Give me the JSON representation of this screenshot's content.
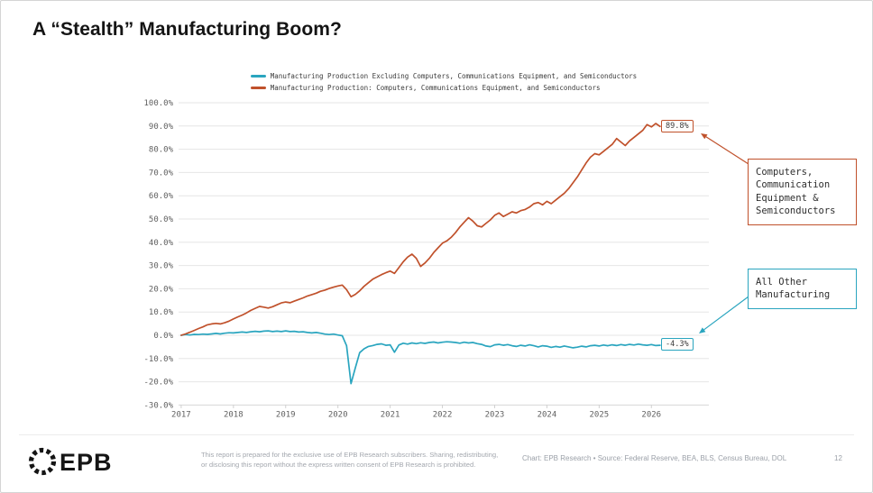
{
  "slide": {
    "title": "A “Stealth” Manufacturing Boom?",
    "page_number": "12"
  },
  "chart_data": {
    "type": "line",
    "title": "A “Stealth” Manufacturing Boom?",
    "legend_position": "top-center",
    "grid": "horizontal",
    "x_axis": {
      "tick_labels": [
        "2017",
        "2018",
        "2019",
        "2020",
        "2021",
        "2022",
        "2023",
        "2024",
        "2025",
        "2026"
      ],
      "tick_values": [
        2017,
        2018,
        2019,
        2020,
        2021,
        2022,
        2023,
        2024,
        2025,
        2026
      ],
      "range": [
        2016.95,
        2027.1
      ]
    },
    "y_axis": {
      "unit": "%",
      "tick_labels": [
        "100.0%",
        "90.0%",
        "80.0%",
        "70.0%",
        "60.0%",
        "50.0%",
        "40.0%",
        "30.0%",
        "20.0%",
        "10.0%",
        "0.0%",
        "-10.0%",
        "-20.0%",
        "-30.0%"
      ],
      "tick_values": [
        100,
        90,
        80,
        70,
        60,
        50,
        40,
        30,
        20,
        10,
        0,
        -10,
        -20,
        -30
      ],
      "range": [
        -30,
        100
      ]
    },
    "series": [
      {
        "name": "Manufacturing Production Excluding Computers, Communications Equipment, and Semiconductors",
        "color": "#2aa5bf",
        "end_label": "-4.3%",
        "x_start": 2017.0,
        "x_step_years": 0.0833333,
        "values": [
          0.0,
          0.3,
          0.1,
          0.4,
          0.3,
          0.5,
          0.4,
          0.6,
          0.8,
          0.6,
          0.9,
          1.1,
          1.0,
          1.2,
          1.4,
          1.2,
          1.5,
          1.7,
          1.5,
          1.8,
          1.9,
          1.6,
          1.8,
          1.6,
          1.9,
          1.6,
          1.7,
          1.4,
          1.5,
          1.2,
          1.0,
          1.2,
          0.9,
          0.5,
          0.3,
          0.5,
          0.1,
          -0.2,
          -4.5,
          -20.8,
          -14.0,
          -7.5,
          -5.8,
          -4.8,
          -4.4,
          -3.9,
          -3.7,
          -4.3,
          -4.1,
          -7.3,
          -4.2,
          -3.4,
          -3.8,
          -3.3,
          -3.6,
          -3.2,
          -3.5,
          -3.1,
          -2.9,
          -3.3,
          -3.0,
          -2.8,
          -2.9,
          -3.1,
          -3.4,
          -3.0,
          -3.3,
          -3.1,
          -3.6,
          -3.9,
          -4.6,
          -4.9,
          -4.1,
          -3.9,
          -4.3,
          -4.0,
          -4.5,
          -4.8,
          -4.3,
          -4.6,
          -4.1,
          -4.5,
          -5.0,
          -4.5,
          -4.7,
          -5.2,
          -4.8,
          -5.1,
          -4.6,
          -5.0,
          -5.4,
          -5.1,
          -4.7,
          -5.0,
          -4.5,
          -4.3,
          -4.6,
          -4.2,
          -4.5,
          -4.1,
          -4.4,
          -4.0,
          -4.3,
          -3.9,
          -4.2,
          -3.8,
          -4.1,
          -4.3,
          -4.0,
          -4.4,
          -4.3
        ]
      },
      {
        "name": "Manufacturing Production: Computers, Communications Equipment, and Semiconductors",
        "color": "#c0512b",
        "end_label": "89.8%",
        "x_start": 2017.0,
        "x_step_years": 0.0833333,
        "values": [
          0.0,
          0.6,
          1.3,
          2.1,
          2.9,
          3.6,
          4.5,
          4.9,
          5.1,
          4.9,
          5.4,
          6.1,
          7.0,
          7.9,
          8.7,
          9.6,
          10.7,
          11.6,
          12.4,
          12.1,
          11.7,
          12.3,
          13.1,
          13.9,
          14.3,
          14.0,
          14.7,
          15.4,
          16.1,
          16.9,
          17.5,
          18.1,
          18.9,
          19.4,
          20.1,
          20.7,
          21.2,
          21.6,
          19.6,
          16.6,
          17.6,
          19.1,
          21.1,
          22.6,
          24.1,
          25.1,
          26.1,
          26.9,
          27.6,
          26.6,
          29.1,
          31.6,
          33.6,
          34.9,
          33.1,
          29.6,
          31.1,
          33.1,
          35.6,
          37.6,
          39.6,
          40.6,
          42.1,
          44.1,
          46.6,
          48.6,
          50.6,
          49.1,
          47.1,
          46.6,
          48.1,
          49.6,
          51.6,
          52.6,
          51.1,
          52.1,
          53.1,
          52.6,
          53.6,
          54.1,
          55.1,
          56.6,
          57.1,
          56.1,
          57.6,
          56.6,
          58.1,
          59.6,
          61.1,
          63.1,
          65.6,
          68.1,
          71.1,
          74.1,
          76.6,
          78.1,
          77.6,
          79.1,
          80.6,
          82.1,
          84.6,
          83.1,
          81.6,
          83.6,
          85.1,
          86.6,
          88.1,
          90.6,
          89.6,
          91.1,
          89.8
        ]
      }
    ],
    "annotations": [
      {
        "text": "Computers,\nCommunication\nEquipment &\nSemiconductors",
        "color": "#c0512b",
        "points_to": "89.8%"
      },
      {
        "text": "All Other\nManufacturing",
        "color": "#2aa5bf",
        "points_to": "-4.3%"
      }
    ]
  },
  "footer": {
    "logo_text": "EPB",
    "disclaimer_line1": "This report is prepared for the exclusive use of EPB Research subscribers. Sharing, redistributing,",
    "disclaimer_line2": "or disclosing this report without the express written consent of EPB Research is prohibited.",
    "source": "Chart: EPB Research  •  Source: Federal Reserve, BEA, BLS, Census Bureau, DOL"
  }
}
